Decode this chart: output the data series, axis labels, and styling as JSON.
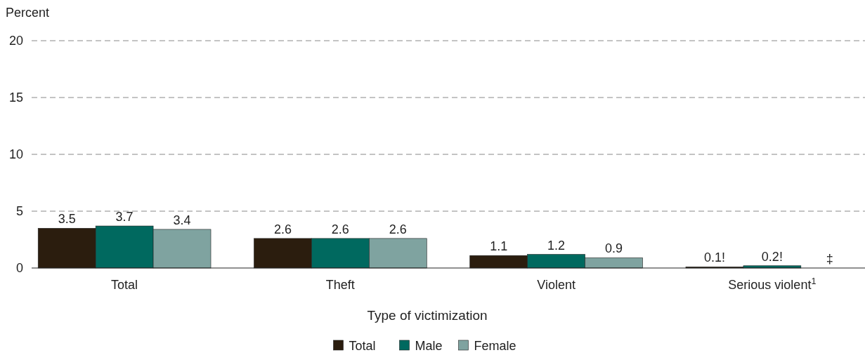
{
  "chart_data": {
    "type": "bar",
    "ylabel": "Percent",
    "xlabel": "Type of victimization",
    "categories": [
      "Total",
      "Theft",
      "Violent",
      "Serious violent$^{1}$"
    ],
    "series": [
      {
        "name": "Total",
        "color": "#2b1d0e",
        "values": [
          3.5,
          2.6,
          1.1,
          0.1
        ],
        "value_labels": [
          "3.5",
          "2.6",
          "1.1",
          "0.1!"
        ]
      },
      {
        "name": "Male",
        "color": "#00695f",
        "values": [
          3.7,
          2.6,
          1.2,
          0.2
        ],
        "value_labels": [
          "3.7",
          "2.6",
          "1.2",
          "0.2!"
        ]
      },
      {
        "name": "Female",
        "color": "#7fa3a0",
        "values": [
          3.4,
          2.6,
          0.9,
          null
        ],
        "value_labels": [
          "3.4",
          "2.6",
          "0.9",
          "‡"
        ]
      }
    ],
    "ylim": [
      0,
      20
    ],
    "yticks": [
      0,
      5,
      10,
      15,
      20
    ],
    "grid": "y",
    "legend": "bottom"
  }
}
